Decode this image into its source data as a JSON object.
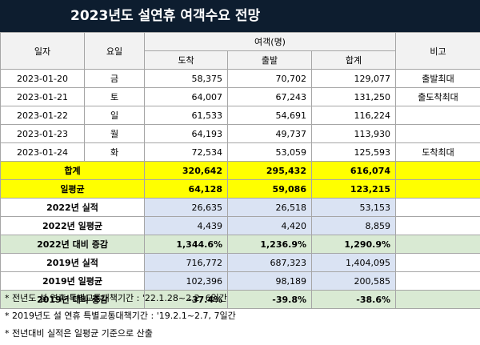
{
  "title": "2023년도 설연휴 여객수요 전망",
  "header": {
    "date": "일자",
    "weekday": "요일",
    "passengers": "여객(명)",
    "arrival": "도착",
    "departure": "출발",
    "total": "합계",
    "remarks": "비고"
  },
  "days": [
    {
      "date": "2023-01-20",
      "weekday": "금",
      "arrival": "58,375",
      "departure": "70,702",
      "total": "129,077",
      "remark": "출발최대"
    },
    {
      "date": "2023-01-21",
      "weekday": "토",
      "arrival": "64,007",
      "departure": "67,243",
      "total": "131,250",
      "remark": "출도착최대"
    },
    {
      "date": "2023-01-22",
      "weekday": "일",
      "arrival": "61,533",
      "departure": "54,691",
      "total": "116,224",
      "remark": ""
    },
    {
      "date": "2023-01-23",
      "weekday": "월",
      "arrival": "64,193",
      "departure": "49,737",
      "total": "113,930",
      "remark": ""
    },
    {
      "date": "2023-01-24",
      "weekday": "화",
      "arrival": "72,534",
      "departure": "53,059",
      "total": "125,593",
      "remark": "도착최대"
    }
  ],
  "summary": [
    {
      "label": "합계",
      "arrival": "320,642",
      "departure": "295,432",
      "total": "616,074"
    },
    {
      "label": "일평균",
      "arrival": "64,128",
      "departure": "59,086",
      "total": "123,215"
    },
    {
      "label": "2022년 실적",
      "arrival": "26,635",
      "departure": "26,518",
      "total": "53,153"
    },
    {
      "label": "2022년 일평균",
      "arrival": "4,439",
      "departure": "4,420",
      "total": "8,859"
    },
    {
      "label": "2022년 대비 증감",
      "arrival": "1,344.6%",
      "departure": "1,236.9%",
      "total": "1,290.9%"
    },
    {
      "label": "2019년 실적",
      "arrival": "716,772",
      "departure": "687,323",
      "total": "1,404,095"
    },
    {
      "label": "2019년 일평균",
      "arrival": "102,396",
      "departure": "98,189",
      "total": "200,585"
    },
    {
      "label": "2019년 대비 증감",
      "arrival": "-37.4%",
      "departure": "-39.8%",
      "total": "-38.6%"
    }
  ],
  "notes": [
    "* 전년도 설 연휴 특별교통대책기간 : '22.1.28~2.2, 6일간",
    "* 2019년도 설 연휴 특별교통대책기간 : '19.2.1~2.7, 7일간",
    "* 전년대비 실적은 일평균 기준으로 산출"
  ],
  "colors": {
    "title_bg": "#0d1d2f",
    "highlight_yellow": "#ffff00",
    "highlight_blue": "#dae3f3",
    "highlight_green": "#d9ead3"
  }
}
